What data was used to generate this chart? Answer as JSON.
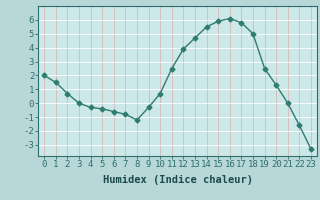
{
  "x": [
    0,
    1,
    2,
    3,
    4,
    5,
    6,
    7,
    8,
    9,
    10,
    11,
    12,
    13,
    14,
    15,
    16,
    17,
    18,
    19,
    20,
    21,
    22,
    23
  ],
  "y": [
    2.0,
    1.5,
    0.7,
    0.0,
    -0.3,
    -0.4,
    -0.6,
    -0.8,
    -1.2,
    -0.3,
    0.7,
    2.5,
    3.9,
    4.7,
    5.5,
    5.9,
    6.1,
    5.8,
    5.0,
    2.5,
    1.3,
    0.0,
    -1.6,
    -3.3
  ],
  "xlim": [
    -0.5,
    23.5
  ],
  "ylim": [
    -3.8,
    7.0
  ],
  "yticks": [
    -3,
    -2,
    -1,
    0,
    1,
    2,
    3,
    4,
    5,
    6
  ],
  "xticks": [
    0,
    1,
    2,
    3,
    4,
    5,
    6,
    7,
    8,
    9,
    10,
    11,
    12,
    13,
    14,
    15,
    16,
    17,
    18,
    19,
    20,
    21,
    22,
    23
  ],
  "xlabel": "Humidex (Indice chaleur)",
  "line_color": "#2e7d6e",
  "marker": "D",
  "marker_size": 2.5,
  "bg_color": "#b8d8d8",
  "grid_color": "#e8e8e8",
  "axes_bg": "#cce8e8",
  "xlabel_fontsize": 7.5,
  "tick_fontsize": 6.5,
  "line_width": 1.0
}
